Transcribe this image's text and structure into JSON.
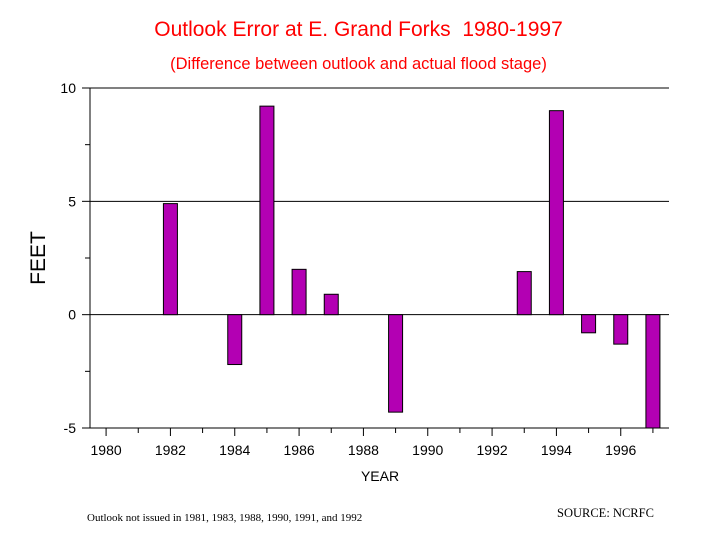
{
  "colors": {
    "title": "#ff0000",
    "bar_fill": "#b300b3",
    "bar_stroke": "#000000",
    "gridline": "#000000",
    "background": "#ffffff"
  },
  "chart_data": {
    "type": "bar",
    "title": "Outlook Error at E. Grand Forks  1980-1997",
    "subtitle": "(Difference between outlook and actual flood stage)",
    "xlabel": "YEAR",
    "ylabel": "FEET",
    "xlim": [
      1979.5,
      1997.5
    ],
    "ylim": [
      -5,
      10
    ],
    "yticks": [
      -5,
      0,
      5,
      10
    ],
    "xtick_labels": [
      "1980",
      "1982",
      "1984",
      "1986",
      "1988",
      "1990",
      "1992",
      "1994",
      "1996"
    ],
    "grid": "horizontal",
    "categories": [
      "1982",
      "1984",
      "1985",
      "1986",
      "1987",
      "1989",
      "1993",
      "1994",
      "1995",
      "1996",
      "1997"
    ],
    "values": [
      4.9,
      -2.2,
      9.2,
      2.0,
      0.9,
      -4.3,
      1.9,
      9.0,
      -0.8,
      -1.3,
      -5.0
    ]
  },
  "footnote": "Outlook not issued in 1981, 1983, 1988, 1990, 1991, and 1992",
  "source": "SOURCE: NCRFC"
}
